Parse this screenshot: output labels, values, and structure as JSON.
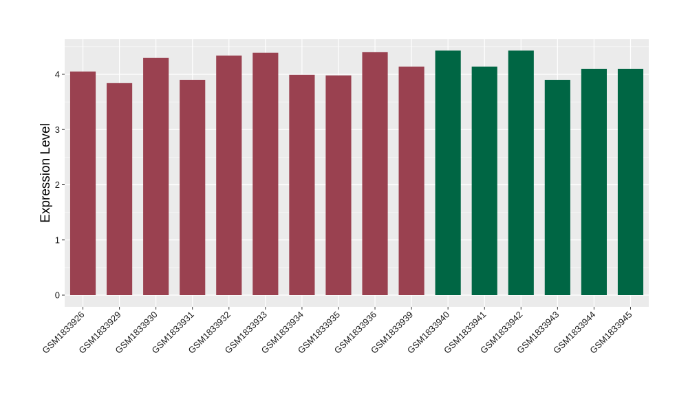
{
  "chart_data": {
    "type": "bar",
    "title": "",
    "xlabel": "",
    "ylabel": "Expression Level",
    "ylim": [
      0,
      4.65
    ],
    "yticks": [
      0,
      1,
      2,
      3,
      4
    ],
    "grid": true,
    "legend": "none",
    "categories": [
      "GSM1833926",
      "GSM1833929",
      "GSM1833930",
      "GSM1833931",
      "GSM1833932",
      "GSM1833933",
      "GSM1833934",
      "GSM1833935",
      "GSM1833936",
      "GSM1833939",
      "GSM1833940",
      "GSM1833941",
      "GSM1833942",
      "GSM1833943",
      "GSM1833944",
      "GSM1833945"
    ],
    "values": [
      4.05,
      3.84,
      4.3,
      3.9,
      4.34,
      4.39,
      3.99,
      3.98,
      4.4,
      4.14,
      4.43,
      4.14,
      4.43,
      3.9,
      4.1,
      4.1
    ],
    "groups": [
      "a",
      "a",
      "a",
      "a",
      "a",
      "a",
      "a",
      "a",
      "a",
      "a",
      "b",
      "b",
      "b",
      "b",
      "b",
      "b"
    ],
    "colors": {
      "a": "#9a4150",
      "b": "#006644",
      "panel": "#ebebeb",
      "grid": "#ffffff"
    }
  }
}
